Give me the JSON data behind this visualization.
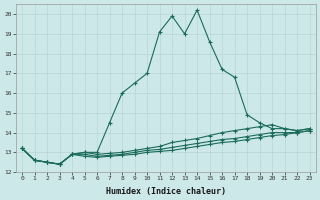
{
  "title": "",
  "xlabel": "Humidex (Indice chaleur)",
  "ylabel": "",
  "bg_color": "#cde8e8",
  "line_color": "#1a6b5a",
  "grid_color": "#b8d4d4",
  "xlim": [
    -0.5,
    23.5
  ],
  "ylim": [
    12,
    20.5
  ],
  "yticks": [
    12,
    13,
    14,
    15,
    16,
    17,
    18,
    19,
    20
  ],
  "xticks": [
    0,
    1,
    2,
    3,
    4,
    5,
    6,
    7,
    8,
    9,
    10,
    11,
    12,
    13,
    14,
    15,
    16,
    17,
    18,
    19,
    20,
    21,
    22,
    23
  ],
  "xtick_labels": [
    "0",
    "1",
    "2",
    "3",
    "4",
    "5",
    "6",
    "7",
    "8",
    "9",
    "10",
    "11",
    "12",
    "13",
    "14",
    "15",
    "16",
    "17",
    "18",
    "19",
    "20",
    "21",
    "22",
    "23"
  ],
  "series": [
    [
      13.2,
      12.6,
      12.5,
      12.4,
      12.9,
      13.0,
      13.0,
      14.5,
      16.0,
      16.5,
      17.0,
      19.1,
      19.9,
      19.0,
      20.2,
      18.6,
      17.2,
      16.8,
      14.9,
      14.5,
      14.2,
      14.2,
      14.1,
      14.2
    ],
    [
      13.2,
      12.6,
      12.5,
      12.4,
      12.9,
      13.0,
      12.9,
      12.95,
      13.0,
      13.1,
      13.2,
      13.3,
      13.5,
      13.6,
      13.7,
      13.85,
      14.0,
      14.1,
      14.2,
      14.3,
      14.4,
      14.2,
      14.1,
      14.2
    ],
    [
      13.2,
      12.6,
      12.5,
      12.4,
      12.9,
      12.9,
      12.8,
      12.85,
      12.9,
      13.0,
      13.1,
      13.15,
      13.25,
      13.35,
      13.45,
      13.55,
      13.65,
      13.7,
      13.8,
      13.9,
      14.0,
      14.0,
      14.0,
      14.1
    ],
    [
      13.2,
      12.6,
      12.5,
      12.4,
      12.9,
      12.8,
      12.75,
      12.8,
      12.85,
      12.9,
      13.0,
      13.05,
      13.1,
      13.2,
      13.3,
      13.4,
      13.5,
      13.55,
      13.65,
      13.75,
      13.85,
      13.9,
      14.0,
      14.1
    ]
  ]
}
